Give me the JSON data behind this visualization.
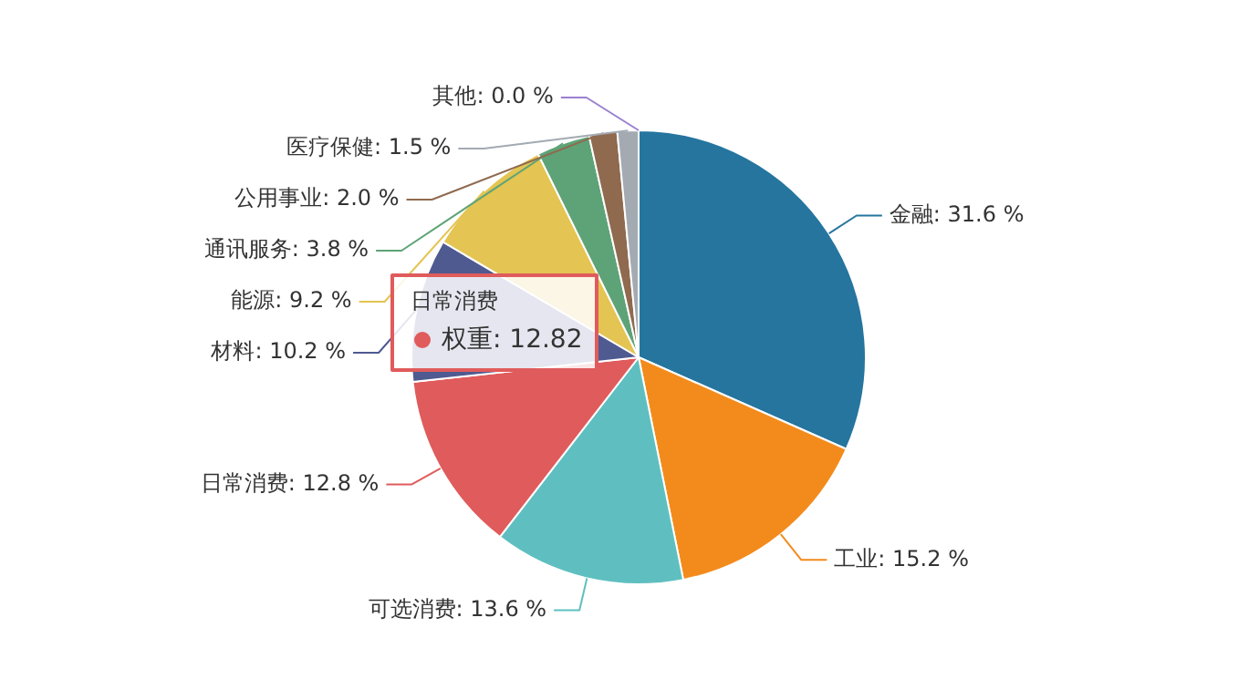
{
  "chart_data": {
    "type": "pie",
    "categories": [
      "金融",
      "工业",
      "可选消费",
      "日常消费",
      "材料",
      "能源",
      "通讯服务",
      "公用事业",
      "医疗保健",
      "其他"
    ],
    "values": [
      31.6,
      15.2,
      13.6,
      12.8,
      10.2,
      9.2,
      3.8,
      2.0,
      1.5,
      0.0
    ],
    "value_labels": [
      ": 31.6 %",
      ": 15.2 %",
      ": 13.6 %",
      ": 12.8 %",
      ": 10.2 %",
      ": 9.2 %",
      ": 3.8 %",
      ": 2.0 %",
      ": 1.5 %",
      ": 0.0 %"
    ],
    "colors": [
      "#25759f",
      "#f38b1c",
      "#5fbfc0",
      "#e05b5c",
      "#4f5a91",
      "#e4c452",
      "#5ea377",
      "#8f6a4f",
      "#a3aab2",
      "#9a7fd1"
    ],
    "annotations": [
      "日常消费",
      "权重: 12.82"
    ],
    "legend": false
  }
}
